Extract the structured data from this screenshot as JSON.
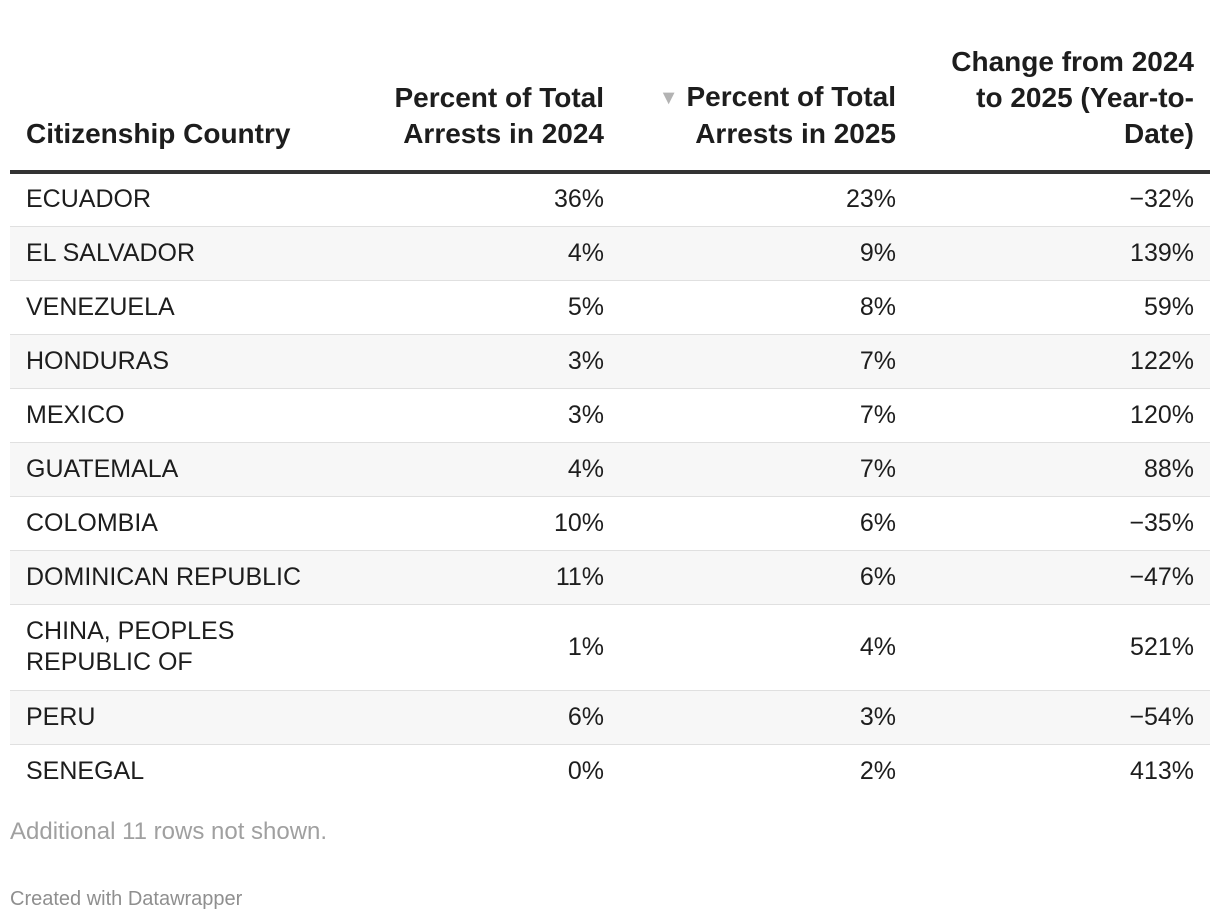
{
  "chart_data": {
    "type": "table",
    "columns": [
      "Citizenship Country",
      "Percent of Total Arrests in 2024",
      "Percent of Total Arrests in 2025",
      "Change from 2024 to 2025 (Year-to-Date)"
    ],
    "sorted_column": 2,
    "sort_direction": "descending",
    "rows": [
      {
        "country": "ECUADOR",
        "pct_2024": "36%",
        "pct_2025": "23%",
        "change": "−32%"
      },
      {
        "country": "EL SALVADOR",
        "pct_2024": "4%",
        "pct_2025": "9%",
        "change": "139%"
      },
      {
        "country": "VENEZUELA",
        "pct_2024": "5%",
        "pct_2025": "8%",
        "change": "59%"
      },
      {
        "country": "HONDURAS",
        "pct_2024": "3%",
        "pct_2025": "7%",
        "change": "122%"
      },
      {
        "country": "MEXICO",
        "pct_2024": "3%",
        "pct_2025": "7%",
        "change": "120%"
      },
      {
        "country": "GUATEMALA",
        "pct_2024": "4%",
        "pct_2025": "7%",
        "change": "88%"
      },
      {
        "country": "COLOMBIA",
        "pct_2024": "10%",
        "pct_2025": "6%",
        "change": "−35%"
      },
      {
        "country": "DOMINICAN REPUBLIC",
        "pct_2024": "11%",
        "pct_2025": "6%",
        "change": "−47%"
      },
      {
        "country": "CHINA, PEOPLES REPUBLIC OF",
        "pct_2024": "1%",
        "pct_2025": "4%",
        "change": "521%"
      },
      {
        "country": "PERU",
        "pct_2024": "6%",
        "pct_2025": "3%",
        "change": "−54%"
      },
      {
        "country": "SENEGAL",
        "pct_2024": "0%",
        "pct_2025": "2%",
        "change": "413%"
      }
    ]
  },
  "sort_indicator_icon": "triangle-down-icon",
  "note": "Additional 11 rows not shown.",
  "credit": "Created with Datawrapper"
}
